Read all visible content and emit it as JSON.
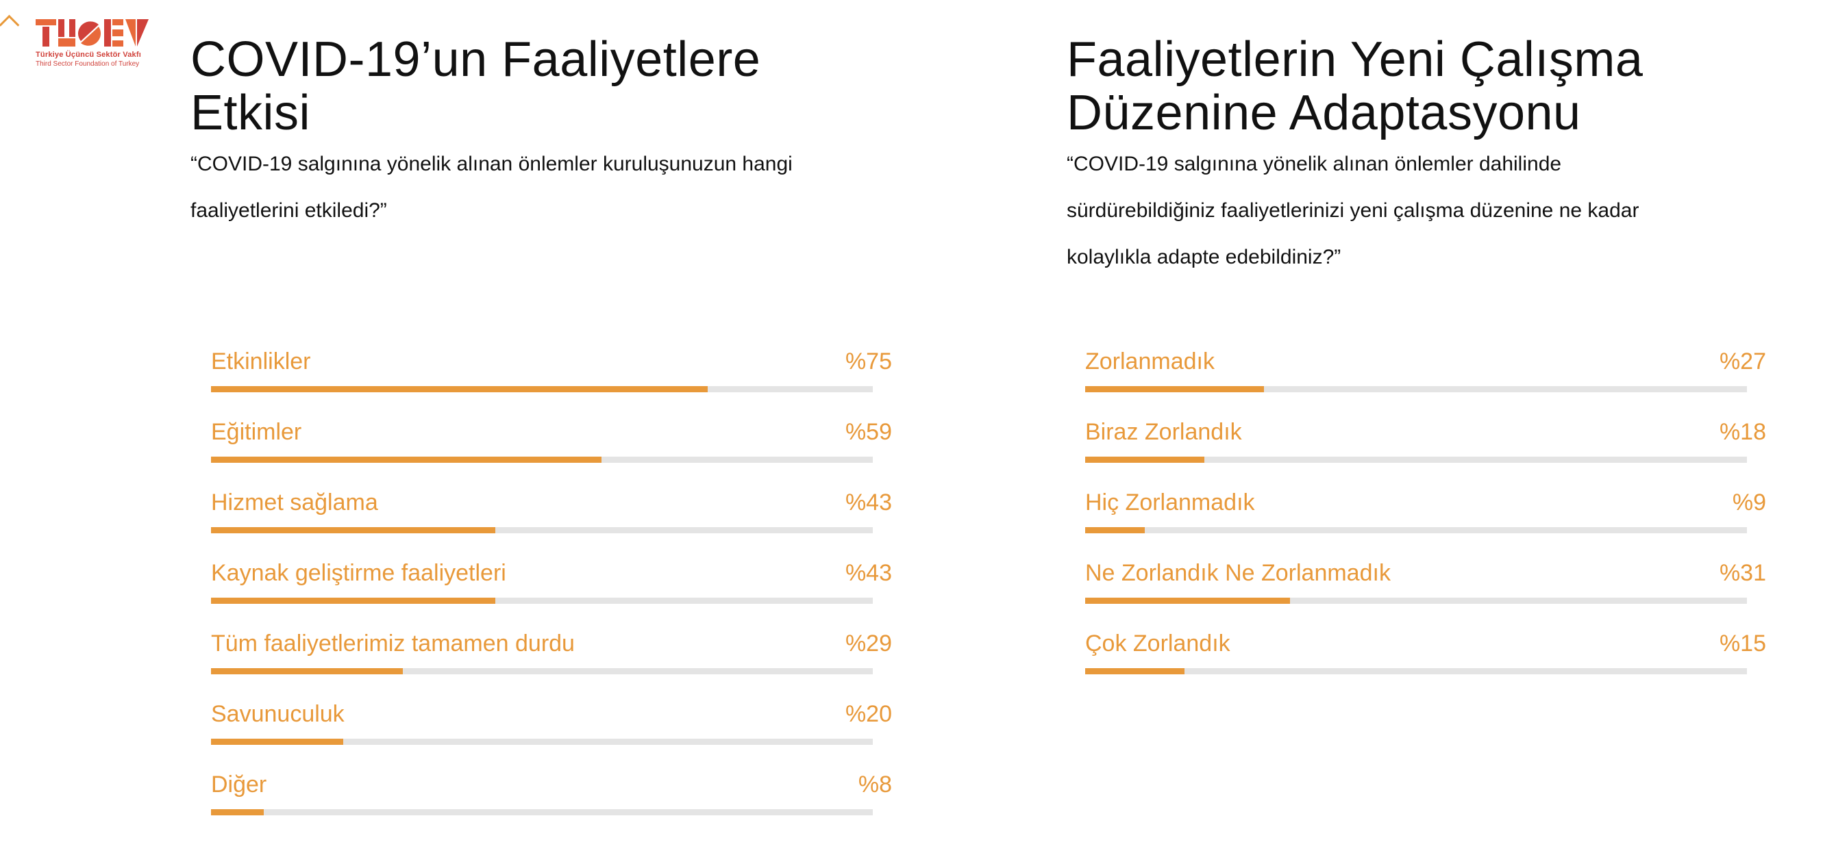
{
  "logo": {
    "wordmark": "TÜSEV",
    "line1": "Türkiye Üçüncü Sektör Vakfı",
    "line2": "Third Sector Foundation of Turkey"
  },
  "colors": {
    "accent": "#E8993A",
    "track": "#E4E4E4",
    "logo_red": "#D0413A",
    "logo_orange": "#E8693A"
  },
  "icons": {
    "scroll_up": "chevron-up-icon"
  },
  "left": {
    "title_lines": [
      "COVID-19’un Faaliyetlere",
      "Etkisi"
    ],
    "question_lines": [
      "“COVID-19 salgınına yönelik alınan önlemler kuruluşunuzun hangi",
      "faaliyetlerini etkiledi?”"
    ],
    "items": [
      {
        "label": "Etkinlikler",
        "pct_text": "%75",
        "value": 75
      },
      {
        "label": "Eğitimler",
        "pct_text": "%59",
        "value": 59
      },
      {
        "label": "Hizmet sağlama",
        "pct_text": "%43",
        "value": 43
      },
      {
        "label": "Kaynak geliştirme faaliyetleri",
        "pct_text": "%43",
        "value": 43
      },
      {
        "label": "Tüm faaliyetlerimiz tamamen durdu",
        "pct_text": "%29",
        "value": 29
      },
      {
        "label": "Savunuculuk",
        "pct_text": "%20",
        "value": 20
      },
      {
        "label": "Diğer",
        "pct_text": "%8",
        "value": 8
      }
    ]
  },
  "right": {
    "title_lines": [
      "Faaliyetlerin Yeni Çalışma",
      "Düzenine Adaptasyonu"
    ],
    "question_lines": [
      "“COVID-19 salgınına yönelik alınan önlemler dahilinde",
      "sürdürebildiğiniz faaliyetlerinizi yeni çalışma düzenine ne kadar",
      "kolaylıkla adapte edebildiniz?”"
    ],
    "items": [
      {
        "label": "Zorlanmadık",
        "pct_text": "%27",
        "value": 27
      },
      {
        "label": "Biraz Zorlandık",
        "pct_text": "%18",
        "value": 18
      },
      {
        "label": "Hiç Zorlanmadık",
        "pct_text": "%9",
        "value": 9
      },
      {
        "label": "Ne Zorlandık Ne Zorlanmadık",
        "pct_text": "%31",
        "value": 31
      },
      {
        "label": "Çok Zorlandık",
        "pct_text": "%15",
        "value": 15
      }
    ]
  }
}
